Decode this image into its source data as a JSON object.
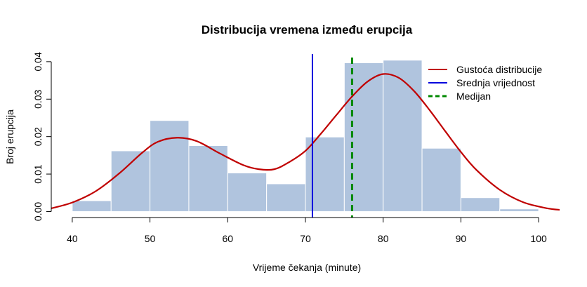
{
  "chart_data": {
    "type": "histogram",
    "title": "Distribucija vremena između erupcija",
    "xlabel": "Vrijeme čekanja (minute)",
    "ylabel": "Broj erupcija",
    "xlim": [
      37.3,
      102.7
    ],
    "ylim": [
      -0.0016,
      0.0426
    ],
    "xticks": [
      40,
      50,
      60,
      70,
      80,
      90,
      100
    ],
    "yticks": [
      0.0,
      0.01,
      0.02,
      0.03,
      0.04
    ],
    "ytick_labels": [
      "0.00",
      "0.01",
      "0.02",
      "0.03",
      "0.04"
    ],
    "bins": [
      {
        "x0": 40,
        "x1": 45,
        "density": 0.0029
      },
      {
        "x0": 45,
        "x1": 50,
        "density": 0.0162
      },
      {
        "x0": 50,
        "x1": 55,
        "density": 0.0243
      },
      {
        "x0": 55,
        "x1": 60,
        "density": 0.0176
      },
      {
        "x0": 60,
        "x1": 65,
        "density": 0.0103
      },
      {
        "x0": 65,
        "x1": 70,
        "density": 0.0074
      },
      {
        "x0": 70,
        "x1": 75,
        "density": 0.0199
      },
      {
        "x0": 75,
        "x1": 80,
        "density": 0.0397
      },
      {
        "x0": 80,
        "x1": 85,
        "density": 0.0404
      },
      {
        "x0": 85,
        "x1": 90,
        "density": 0.0169
      },
      {
        "x0": 90,
        "x1": 95,
        "density": 0.0037
      },
      {
        "x0": 95,
        "x1": 100,
        "density": 0.0007
      }
    ],
    "density_curve": {
      "x": [
        37,
        40,
        43,
        46,
        49,
        51,
        53.5,
        56,
        59,
        62,
        64,
        66,
        68,
        70,
        72,
        74,
        76,
        78,
        80,
        82,
        84,
        86,
        88,
        90,
        92,
        95,
        98,
        101,
        103
      ],
      "y": [
        0.0007,
        0.0024,
        0.0054,
        0.0101,
        0.0157,
        0.0186,
        0.0197,
        0.0188,
        0.0155,
        0.0124,
        0.0113,
        0.0113,
        0.0133,
        0.0162,
        0.0208,
        0.0258,
        0.0307,
        0.0347,
        0.0367,
        0.0357,
        0.0321,
        0.027,
        0.0214,
        0.0159,
        0.0111,
        0.0058,
        0.0025,
        0.0009,
        0.0004
      ]
    },
    "mean": 70.9,
    "median": 76,
    "colors": {
      "bars": "#b0c4de",
      "bar_border": "#ffffff",
      "density": "#c00000",
      "mean": "#0000dd",
      "median": "#008800"
    },
    "legend": {
      "position": "top-right",
      "entries": [
        {
          "label": "Gustoća distribucije",
          "color": "#c00000",
          "style": "solid"
        },
        {
          "label": "Srednja vrijednost",
          "color": "#0000dd",
          "style": "solid"
        },
        {
          "label": "Medijan",
          "color": "#008800",
          "style": "dashed"
        }
      ]
    }
  }
}
